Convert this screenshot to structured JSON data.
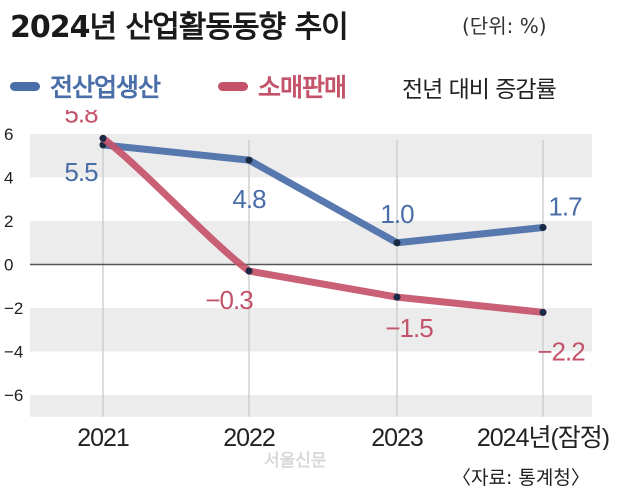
{
  "header": {
    "title": "2024년 산업활동동향 추이",
    "unit": "(단위: %)"
  },
  "legend": {
    "note": "전년 대비 증감률"
  },
  "source": "〈자료: 통계청〉",
  "watermark": "서울신문",
  "colors": {
    "series_1": "#4a6ea8",
    "series_2": "#c4536a",
    "band": "#ececec",
    "zero_line": "#555555",
    "vline": "#cfcfcf"
  },
  "chart_data": {
    "type": "line",
    "categories": [
      "2021",
      "2022",
      "2023",
      "2024년(잠정)"
    ],
    "yticks": [
      "6",
      "4",
      "2",
      "0",
      "−2",
      "−4",
      "−6"
    ],
    "ylim": [
      -7,
      6
    ],
    "grid": "horizontal bands",
    "series": [
      {
        "name": "전산업생산",
        "values": [
          5.5,
          4.8,
          1.0,
          1.7
        ],
        "labels": [
          "5.5",
          "4.8",
          "1.0",
          "1.7"
        ]
      },
      {
        "name": "소매판매",
        "values": [
          5.8,
          -0.3,
          -1.5,
          -2.2
        ],
        "labels": [
          "5.8",
          "−0.3",
          "−1.5",
          "−2.2"
        ]
      }
    ]
  }
}
